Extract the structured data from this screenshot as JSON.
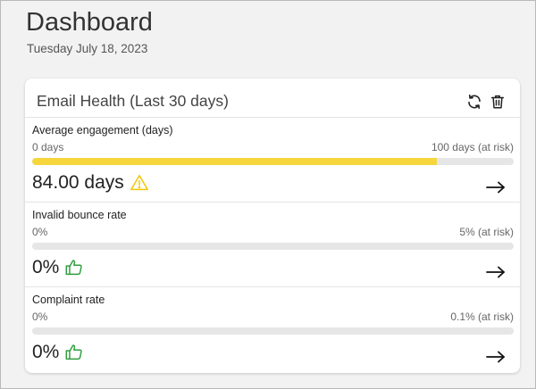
{
  "page": {
    "title": "Dashboard",
    "date": "Tuesday July 18, 2023"
  },
  "card": {
    "title": "Email Health (Last 30 days)",
    "icons": {
      "refresh": "refresh-icon",
      "delete": "trash-icon"
    },
    "metrics": [
      {
        "label": "Average engagement (days)",
        "scale_min": "0 days",
        "scale_max": "100 days (at risk)",
        "value": "84.00 days",
        "progress_fraction": 0.84,
        "bar_color": "#f5d63d",
        "status_icon": "warning-icon",
        "status_color": "#f2c500"
      },
      {
        "label": "Invalid bounce rate",
        "scale_min": "0%",
        "scale_max": "5% (at risk)",
        "value": "0%",
        "progress_fraction": 0,
        "bar_color": "#2e9e3e",
        "status_icon": "thumbs-up-icon",
        "status_color": "#2e9e3e"
      },
      {
        "label": "Complaint rate",
        "scale_min": "0%",
        "scale_max": "0.1% (at risk)",
        "value": "0%",
        "progress_fraction": 0,
        "bar_color": "#2e9e3e",
        "status_icon": "thumbs-up-icon",
        "status_color": "#2e9e3e"
      }
    ]
  }
}
